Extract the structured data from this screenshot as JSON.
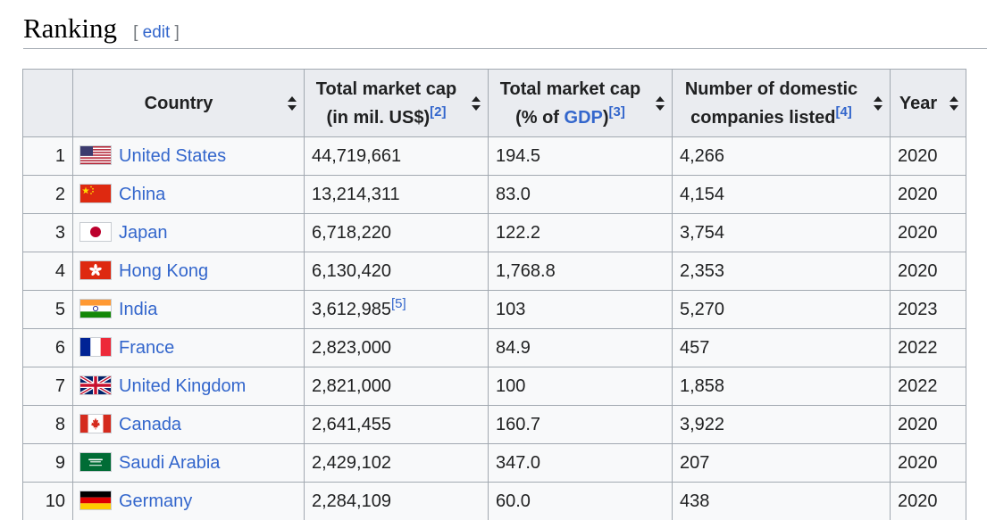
{
  "section": {
    "title": "Ranking",
    "edit_open": "[",
    "edit_label": "edit",
    "edit_close": "]"
  },
  "table": {
    "headers": {
      "country": "Country",
      "market_cap_line1": "Total market cap",
      "market_cap_line2": "(in mil. US$)",
      "market_cap_ref": "[2]",
      "gdp_line1": "Total market cap",
      "gdp_prefix": "(% of ",
      "gdp_link": "GDP",
      "gdp_suffix": ")",
      "gdp_ref": "[3]",
      "companies_line1": "Number of domestic",
      "companies_line2": "companies listed",
      "companies_ref": "[4]",
      "year": "Year"
    },
    "rows": [
      {
        "rank": "1",
        "country": "United States",
        "flag": "us-flag",
        "market_cap": "44,719,661",
        "market_cap_ref": "",
        "gdp": "194.5",
        "companies": "4,266",
        "year": "2020"
      },
      {
        "rank": "2",
        "country": "China",
        "flag": "china-flag",
        "market_cap": "13,214,311",
        "market_cap_ref": "",
        "gdp": "83.0",
        "companies": "4,154",
        "year": "2020"
      },
      {
        "rank": "3",
        "country": "Japan",
        "flag": "japan-flag",
        "market_cap": "6,718,220",
        "market_cap_ref": "",
        "gdp": "122.2",
        "companies": "3,754",
        "year": "2020"
      },
      {
        "rank": "4",
        "country": "Hong Kong",
        "flag": "hong-kong-flag",
        "market_cap": "6,130,420",
        "market_cap_ref": "",
        "gdp": "1,768.8",
        "companies": "2,353",
        "year": "2020"
      },
      {
        "rank": "5",
        "country": "India",
        "flag": "india-flag",
        "market_cap": "3,612,985",
        "market_cap_ref": "[5]",
        "gdp": "103",
        "companies": "5,270",
        "year": "2023"
      },
      {
        "rank": "6",
        "country": "France",
        "flag": "france-flag",
        "market_cap": "2,823,000",
        "market_cap_ref": "",
        "gdp": "84.9",
        "companies": "457",
        "year": "2022"
      },
      {
        "rank": "7",
        "country": "United Kingdom",
        "flag": "uk-flag",
        "market_cap": "2,821,000",
        "market_cap_ref": "",
        "gdp": "100",
        "companies": "1,858",
        "year": "2022"
      },
      {
        "rank": "8",
        "country": "Canada",
        "flag": "canada-flag",
        "market_cap": "2,641,455",
        "market_cap_ref": "",
        "gdp": "160.7",
        "companies": "3,922",
        "year": "2020"
      },
      {
        "rank": "9",
        "country": "Saudi Arabia",
        "flag": "saudi-arabia-flag",
        "market_cap": "2,429,102",
        "market_cap_ref": "",
        "gdp": "347.0",
        "companies": "207",
        "year": "2020"
      },
      {
        "rank": "10",
        "country": "Germany",
        "flag": "germany-flag",
        "market_cap": "2,284,109",
        "market_cap_ref": "",
        "gdp": "60.0",
        "companies": "438",
        "year": "2020"
      }
    ]
  },
  "colors": {
    "link": "#3366cc",
    "header_bg": "#eaecf0",
    "cell_bg": "#f8f9fa",
    "border": "#a2a9b1"
  }
}
